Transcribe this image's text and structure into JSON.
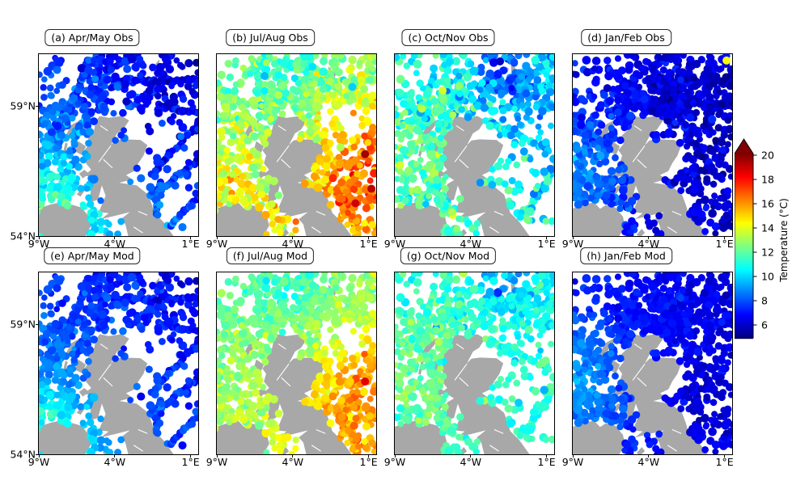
{
  "figure": {
    "background": "#ffffff"
  },
  "map": {
    "land_color": "#a8a8a8",
    "sea_color": "#ffffff"
  },
  "panels": [
    {
      "id": "a",
      "label": "(a) Apr/May Obs"
    },
    {
      "id": "b",
      "label": "(b) Jul/Aug Obs"
    },
    {
      "id": "c",
      "label": "(c) Oct/Nov Obs"
    },
    {
      "id": "d",
      "label": "(d) Jan/Feb Obs"
    },
    {
      "id": "e",
      "label": "(e) Apr/May Mod"
    },
    {
      "id": "f",
      "label": "(f) Jul/Aug Mod"
    },
    {
      "id": "g",
      "label": "(g) Oct/Nov Mod"
    },
    {
      "id": "h",
      "label": "(h) Jan/Feb Mod"
    }
  ],
  "axes": {
    "lon_ticks": [
      {
        "label": "9°W",
        "lon": -9
      },
      {
        "label": "4°W",
        "lon": -4
      },
      {
        "label": "1°E",
        "lon": 1
      }
    ],
    "lat_ticks": [
      {
        "label": "59°N",
        "lat": 59
      },
      {
        "label": "54°N",
        "lat": 54
      }
    ],
    "extent": {
      "lon": [
        -9,
        1.5
      ],
      "lat": [
        54,
        61
      ]
    }
  },
  "colorbar": {
    "label": "Temperature (°C)",
    "ticks": [
      "20",
      "18",
      "16",
      "14",
      "12",
      "10",
      "8",
      "6"
    ],
    "tick_values": [
      20,
      18,
      16,
      14,
      12,
      10,
      8,
      6
    ],
    "range": [
      4.9,
      20.1
    ],
    "colormap": "jet",
    "extend": "max",
    "extend_color": "#800000"
  },
  "chart_data": {
    "type": "scatter",
    "subtype": "geographic-small-multiples",
    "title": "",
    "panel_grid": {
      "rows": 2,
      "cols": 4
    },
    "region": "Scotland / UK shelf seas (NE Atlantic and North Sea)",
    "marker": "filled circles along ship tracks and scattered stations; land masked gray",
    "x_axis": {
      "tick_labels": [
        "9°W",
        "4°W",
        "1°E"
      ],
      "tick_lons": [
        -9,
        -4,
        1
      ],
      "range_lon": [
        -9,
        1.5
      ]
    },
    "y_axis": {
      "tick_labels": [
        "59°N",
        "54°N"
      ],
      "tick_lats": [
        59,
        54
      ],
      "range_lat": [
        54,
        61
      ]
    },
    "colorbar": {
      "label": "Temperature (°C)",
      "tick_values": [
        6,
        8,
        10,
        12,
        14,
        16,
        18,
        20
      ],
      "colormap": "jet",
      "extend": "max"
    },
    "panels": [
      {
        "label": "(a) Apr/May Obs",
        "season": "Apr/May",
        "source": "Observations",
        "approx_temp_range_c": [
          6,
          11
        ],
        "approx_mean_c": 8.5,
        "pattern": "blue/cyan; warmer green patch in far SW; coldest in NE"
      },
      {
        "label": "(b) Jul/Aug Obs",
        "season": "Jul/Aug",
        "source": "Observations",
        "approx_temp_range_c": [
          10,
          19
        ],
        "approx_mean_c": 14,
        "pattern": "green/yellow; orange-red in SE North Sea; cooler cyan in N"
      },
      {
        "label": "(c) Oct/Nov Obs",
        "season": "Oct/Nov",
        "source": "Observations",
        "approx_temp_range_c": [
          8,
          14
        ],
        "approx_mean_c": 11,
        "pattern": "cyan/green mix; scattered blue in E; cold spot near Shetland"
      },
      {
        "label": "(d) Jan/Feb Obs",
        "season": "Jan/Feb",
        "source": "Observations",
        "approx_temp_range_c": [
          5.5,
          9
        ],
        "approx_mean_c": 7,
        "pattern": "dark/medium blue; slightly warmer in W; one warm outlier top-right"
      },
      {
        "label": "(e) Apr/May Mod",
        "season": "Apr/May",
        "source": "Model",
        "approx_temp_range_c": [
          6,
          10.5
        ],
        "approx_mean_c": 8.3,
        "pattern": "as (a) but smoother"
      },
      {
        "label": "(f) Jul/Aug Mod",
        "season": "Jul/Aug",
        "source": "Model",
        "approx_temp_range_c": [
          11,
          18
        ],
        "approx_mean_c": 13.8,
        "pattern": "as (b), less extreme orange"
      },
      {
        "label": "(g) Oct/Nov Mod",
        "season": "Oct/Nov",
        "source": "Model",
        "approx_temp_range_c": [
          9,
          13.5
        ],
        "approx_mean_c": 11.3,
        "pattern": "as (c), slightly greener"
      },
      {
        "label": "(h) Jan/Feb Mod",
        "season": "Jan/Feb",
        "source": "Model",
        "approx_temp_range_c": [
          5.5,
          9
        ],
        "approx_mean_c": 7.2,
        "pattern": "as (d), smoother blues"
      }
    ]
  },
  "render": {
    "columns": [
      {
        "seed": 101,
        "random": 430,
        "tracks": 11,
        "sparse": [
          0.52,
          0.42,
          0.5
        ],
        "regions": [
          [
            0.38,
            0,
            0.4,
            0.22,
            1
          ],
          [
            0.15,
            0.3,
            1,
            0,
            0.28
          ]
        ]
      },
      {
        "seed": 202,
        "random": 720,
        "tracks": 14,
        "sparse": null,
        "regions": [
          [
            0.3,
            0,
            0.42,
            0.2,
            1
          ],
          [
            0.15,
            0.3,
            1,
            0,
            0.3
          ],
          [
            0.2,
            0.55,
            1,
            0.4,
            1
          ]
        ]
      },
      {
        "seed": 303,
        "random": 560,
        "tracks": 12,
        "sparse": [
          0.5,
          0.45,
          0.35
        ],
        "regions": [
          [
            0.32,
            0,
            0.42,
            0.2,
            1
          ],
          [
            0.15,
            0.3,
            1,
            0,
            0.3
          ]
        ]
      },
      {
        "seed": 404,
        "random": 700,
        "tracks": 13,
        "sparse": null,
        "regions": [
          [
            0.28,
            0,
            0.4,
            0.2,
            1
          ],
          [
            0.15,
            0.3,
            1,
            0,
            0.3
          ],
          [
            0.25,
            0.45,
            1,
            0.1,
            0.95
          ]
        ]
      }
    ],
    "fields": [
      {
        "seed": 11,
        "base": 7.9,
        "wu": -1.3,
        "wv": 1.5,
        "noise": 0.6,
        "patches": [
          [
            0.07,
            0.82,
            0.28,
            2.2
          ],
          [
            0.22,
            0.97,
            0.22,
            1.4
          ],
          [
            0.85,
            0.3,
            0.35,
            -0.7
          ]
        ],
        "outliers": []
      },
      {
        "seed": 22,
        "base": 13.4,
        "wu": 0.9,
        "wv": 1.3,
        "noise": 0.85,
        "patches": [
          [
            0.85,
            0.75,
            0.35,
            2.1
          ],
          [
            0.97,
            0.5,
            0.25,
            1.5
          ],
          [
            0.5,
            0.05,
            0.35,
            -1.3
          ],
          [
            0.12,
            0.72,
            0.3,
            0.7
          ]
        ],
        "outliers": [
          [
            0.93,
            0.55,
            19.6
          ],
          [
            0.97,
            0.74,
            19.2
          ],
          [
            0.87,
            0.82,
            18.9
          ],
          [
            0.3,
            0.12,
            9.6
          ],
          [
            0.85,
            0.18,
            9.9
          ]
        ]
      },
      {
        "seed": 33,
        "base": 10.9,
        "wu": -0.9,
        "wv": 0.6,
        "noise": 0.9,
        "patches": [
          [
            0.67,
            0.06,
            0.16,
            -2.6
          ],
          [
            0.9,
            0.35,
            0.3,
            -1.1
          ],
          [
            0.2,
            0.6,
            0.3,
            0.8
          ]
        ],
        "outliers": [
          [
            0.3,
            0.2,
            13.8
          ],
          [
            0.17,
            0.3,
            13.4
          ],
          [
            0.66,
            0.04,
            6.0
          ]
        ]
      },
      {
        "seed": 44,
        "base": 6.6,
        "wu": -0.9,
        "wv": 0.4,
        "noise": 0.5,
        "patches": [
          [
            0.05,
            0.65,
            0.3,
            1.8
          ],
          [
            0.9,
            0.6,
            0.3,
            -0.4
          ]
        ],
        "outliers": [
          [
            0.965,
            0.035,
            14.3
          ]
        ]
      },
      {
        "seed": 55,
        "base": 7.8,
        "wu": -1.2,
        "wv": 1.4,
        "noise": 0.45,
        "patches": [
          [
            0.07,
            0.82,
            0.26,
            1.8
          ],
          [
            0.22,
            0.97,
            0.2,
            1.2
          ]
        ],
        "outliers": []
      },
      {
        "seed": 66,
        "base": 13.2,
        "wu": 0.9,
        "wv": 1.4,
        "noise": 0.55,
        "patches": [
          [
            0.85,
            0.78,
            0.33,
            2.0
          ],
          [
            0.97,
            0.5,
            0.22,
            1.2
          ],
          [
            0.5,
            0.05,
            0.3,
            -0.9
          ]
        ],
        "outliers": [
          [
            0.93,
            0.6,
            18.6
          ]
        ]
      },
      {
        "seed": 77,
        "base": 11.3,
        "wu": -0.7,
        "wv": 0.5,
        "noise": 0.65,
        "patches": [
          [
            0.67,
            0.06,
            0.15,
            -1.5
          ],
          [
            0.2,
            0.6,
            0.3,
            0.6
          ]
        ],
        "outliers": []
      },
      {
        "seed": 88,
        "base": 7.0,
        "wu": -1.0,
        "wv": 0.3,
        "noise": 0.35,
        "patches": [
          [
            0.05,
            0.6,
            0.3,
            1.6
          ],
          [
            0.75,
            0.75,
            0.28,
            -0.7
          ]
        ],
        "outliers": []
      }
    ]
  }
}
